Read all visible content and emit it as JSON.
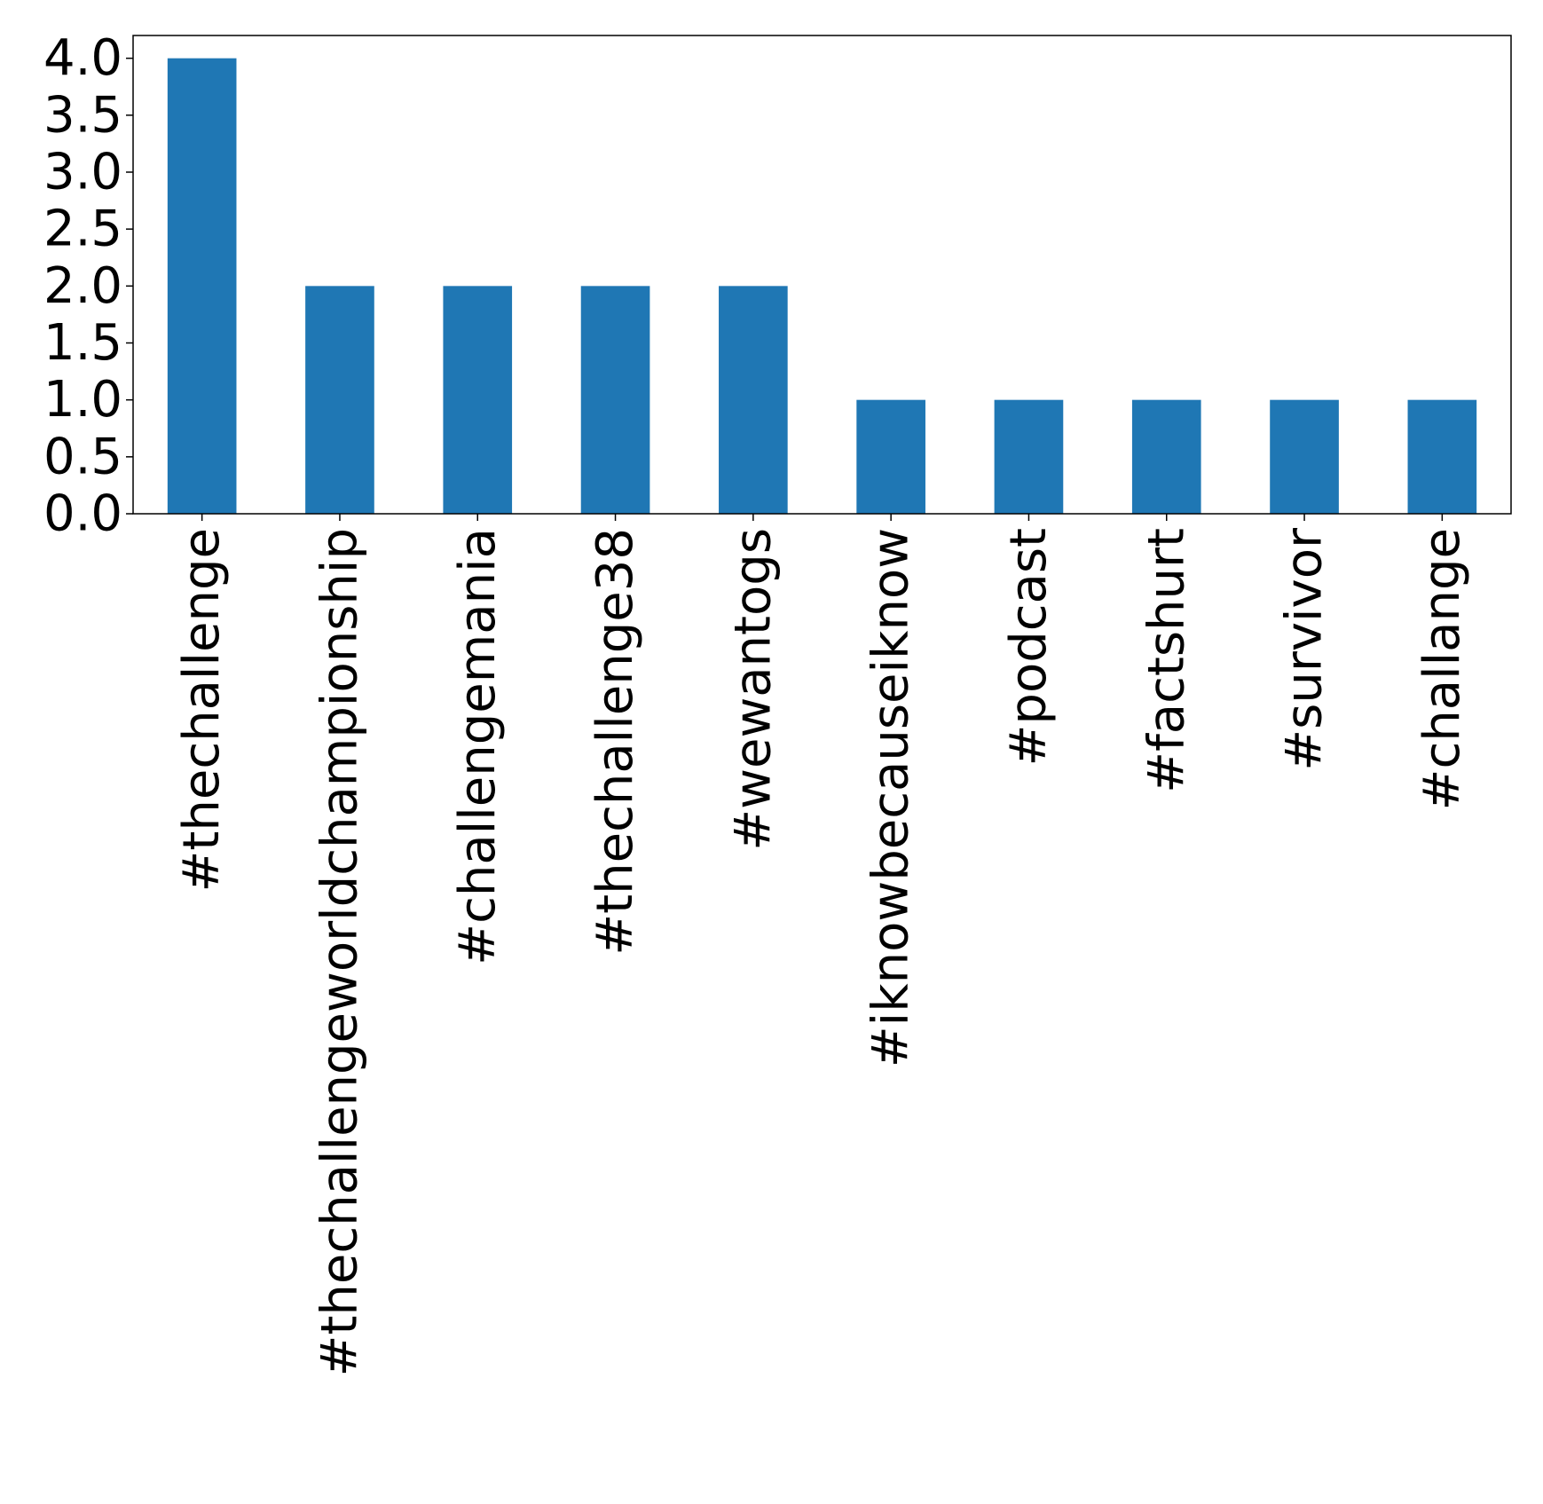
{
  "chart_data": {
    "type": "bar",
    "title": "",
    "xlabel": "",
    "ylabel": "",
    "categories": [
      "#thechallenge",
      "#thechallengeworldchampionship",
      "#challengemania",
      "#thechallenge38",
      "#wewantogs",
      "#iknowbecauseiknow",
      "#podcast",
      "#factshurt",
      "#survivor",
      "#challange"
    ],
    "values": [
      4,
      2,
      2,
      2,
      2,
      1,
      1,
      1,
      1,
      1
    ],
    "ylim": [
      0,
      4.2
    ],
    "yticks": [
      "0.0",
      "0.5",
      "1.0",
      "1.5",
      "2.0",
      "2.5",
      "3.0",
      "3.5",
      "4.0"
    ],
    "bar_color": "#1f77b4",
    "grid": false,
    "legend": "none"
  }
}
